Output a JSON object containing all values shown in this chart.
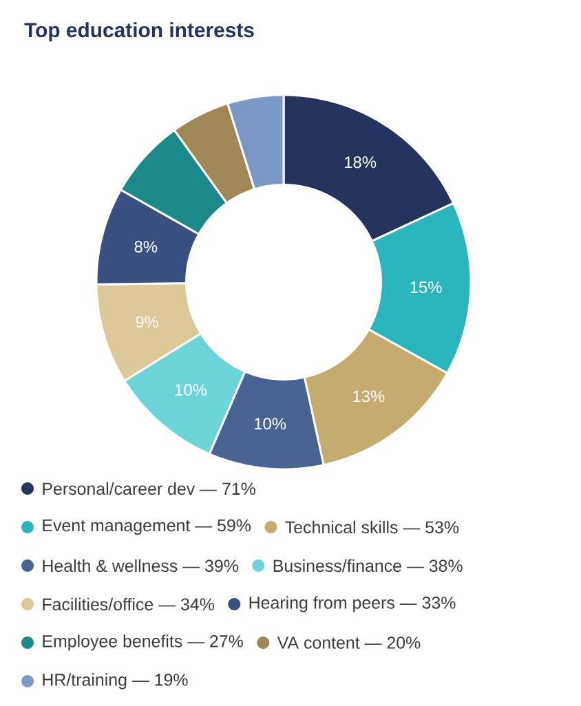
{
  "chart_data": {
    "type": "donut",
    "title": "Top education interests",
    "categories": [
      "Personal/career dev — 71%",
      "Event management — 59%",
      "Technical skills — 53%",
      "Health & wellness — 39%",
      "Business/finance — 38%",
      "Facilities/office — 34%",
      "Hearing from peers — 33%",
      "Employee benefits — 27%",
      "VA content — 20%",
      "HR/training — 19%"
    ],
    "values": [
      18.07,
      15.01,
      13.49,
      9.92,
      9.67,
      8.65,
      8.4,
      6.87,
      5.09,
      4.83
    ],
    "value_labels": [
      "18%",
      "15%",
      "13%",
      "10%",
      "10%",
      "9%",
      "8%",
      null,
      null,
      null
    ],
    "colors": [
      "#25345f",
      "#2bb6bd",
      "#c6ab6e",
      "#4a6392",
      "#6dd5d9",
      "#dcc999",
      "#3a5081",
      "#1c8a8a",
      "#9f8856",
      "#7b98c6"
    ],
    "legend": "bottom"
  }
}
